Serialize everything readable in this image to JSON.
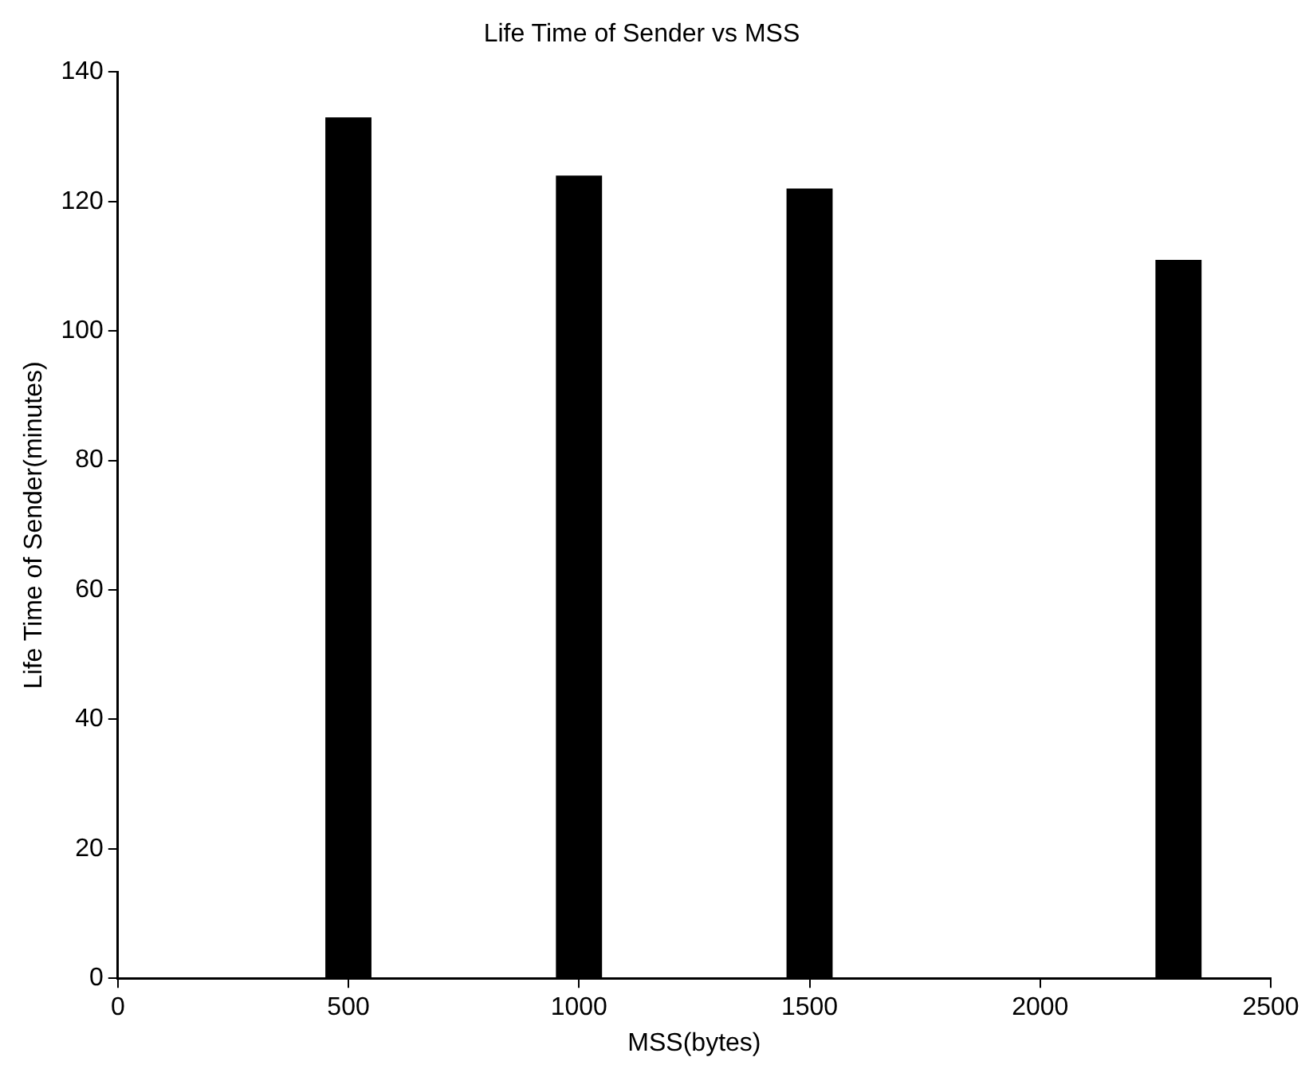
{
  "chart_data": {
    "type": "bar",
    "title": "Life Time of Sender vs MSS",
    "xlabel": "MSS(bytes)",
    "ylabel": "Life Time of Sender(minutes)",
    "x": [
      500,
      1000,
      1500,
      2300
    ],
    "values": [
      133,
      124,
      122,
      111
    ],
    "color": "#000000",
    "xlim": [
      0,
      2500
    ],
    "xticks": [
      0,
      500,
      1000,
      1500,
      2000,
      2500
    ],
    "ylim": [
      0,
      140
    ],
    "yticks": [
      0,
      20,
      40,
      60,
      80,
      100,
      120,
      140
    ],
    "grid": false,
    "legend": false
  }
}
